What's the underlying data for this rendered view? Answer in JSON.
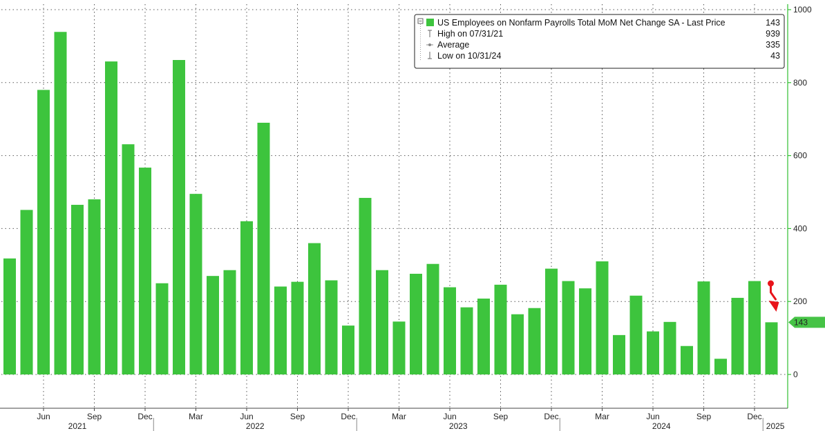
{
  "chart_data": {
    "type": "bar",
    "ylim": [
      -90,
      1000
    ],
    "yticks": [
      0,
      200,
      400,
      600,
      800,
      1000
    ],
    "grid": true,
    "legend_position": "top-right",
    "colors": {
      "bar": "#3dc43d",
      "axis": "#2fbf2f",
      "last_badge": "#46c346",
      "arrow": "#e8141b",
      "grid": "#555555"
    },
    "legend": {
      "title": "US Employees on Nonfarm Payrolls Total MoM Net Change SA - Last Price",
      "last_value": "143",
      "rows": [
        {
          "label": "High on 07/31/21",
          "value": "939",
          "icon": "high-marker-icon"
        },
        {
          "label": "Average",
          "value": "335",
          "icon": "average-marker-icon"
        },
        {
          "label": "Low on 10/31/24",
          "value": "43",
          "icon": "low-marker-icon"
        }
      ]
    },
    "last_price_label": "143",
    "month_labels": [
      {
        "label": "Jun",
        "index": 2
      },
      {
        "label": "Sep",
        "index": 5
      },
      {
        "label": "Dec",
        "index": 8
      },
      {
        "label": "Mar",
        "index": 11
      },
      {
        "label": "Jun",
        "index": 14
      },
      {
        "label": "Sep",
        "index": 17
      },
      {
        "label": "Dec",
        "index": 20
      },
      {
        "label": "Mar",
        "index": 23
      },
      {
        "label": "Jun",
        "index": 26
      },
      {
        "label": "Sep",
        "index": 29
      },
      {
        "label": "Dec",
        "index": 32
      },
      {
        "label": "Mar",
        "index": 35
      },
      {
        "label": "Jun",
        "index": 38
      },
      {
        "label": "Sep",
        "index": 41
      },
      {
        "label": "Dec",
        "index": 44
      }
    ],
    "year_labels": [
      {
        "label": "2021",
        "from": 0,
        "to": 8
      },
      {
        "label": "2022",
        "from": 9,
        "to": 20
      },
      {
        "label": "2023",
        "from": 21,
        "to": 32
      },
      {
        "label": "2024",
        "from": 33,
        "to": 44
      },
      {
        "label": "2025",
        "from": 45,
        "to": 45
      }
    ],
    "categories": [
      "2021-04",
      "2021-05",
      "2021-06",
      "2021-07",
      "2021-08",
      "2021-09",
      "2021-10",
      "2021-11",
      "2021-12",
      "2022-01",
      "2022-02",
      "2022-03",
      "2022-04",
      "2022-05",
      "2022-06",
      "2022-07",
      "2022-08",
      "2022-09",
      "2022-10",
      "2022-11",
      "2022-12",
      "2023-01",
      "2023-02",
      "2023-03",
      "2023-04",
      "2023-05",
      "2023-06",
      "2023-07",
      "2023-08",
      "2023-09",
      "2023-10",
      "2023-11",
      "2023-12",
      "2024-01",
      "2024-02",
      "2024-03",
      "2024-04",
      "2024-05",
      "2024-06",
      "2024-07",
      "2024-08",
      "2024-09",
      "2024-10",
      "2024-11",
      "2024-12",
      "2025-01"
    ],
    "values": [
      318,
      451,
      780,
      939,
      465,
      480,
      858,
      631,
      567,
      250,
      862,
      495,
      270,
      286,
      420,
      690,
      241,
      254,
      360,
      258,
      134,
      484,
      286,
      145,
      276,
      303,
      239,
      184,
      208,
      246,
      165,
      182,
      290,
      256,
      236,
      310,
      108,
      216,
      118,
      144,
      78,
      255,
      43,
      210,
      256,
      143
    ]
  }
}
